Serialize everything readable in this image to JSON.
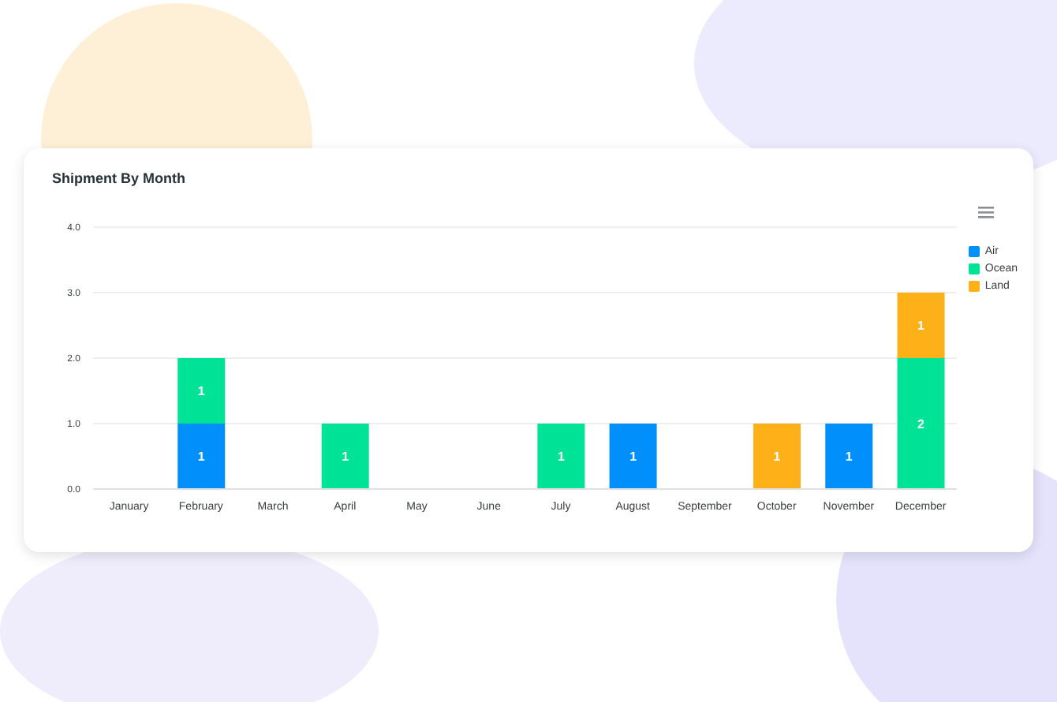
{
  "chart_data": {
    "type": "bar",
    "title": "Shipment By Month",
    "categories": [
      "January",
      "February",
      "March",
      "April",
      "May",
      "June",
      "July",
      "August",
      "September",
      "October",
      "November",
      "December"
    ],
    "series": [
      {
        "name": "Air",
        "color": "#008ffb",
        "values": [
          null,
          1,
          null,
          null,
          null,
          null,
          null,
          1,
          null,
          null,
          1,
          null
        ]
      },
      {
        "name": "Ocean",
        "color": "#00e396",
        "values": [
          null,
          1,
          null,
          1,
          null,
          null,
          1,
          null,
          null,
          null,
          null,
          2
        ]
      },
      {
        "name": "Land",
        "color": "#feb019",
        "values": [
          null,
          null,
          null,
          null,
          null,
          null,
          null,
          null,
          null,
          1,
          null,
          1
        ]
      }
    ],
    "stacked": true,
    "ylim": [
      0,
      4
    ],
    "yticks": [
      {
        "value": 0,
        "label": "0.0"
      },
      {
        "value": 1,
        "label": "1.0"
      },
      {
        "value": 2,
        "label": "2.0"
      },
      {
        "value": 3,
        "label": "3.0"
      },
      {
        "value": 4,
        "label": "4.0"
      }
    ],
    "grid": "y",
    "legend": "top right",
    "data_labels": true
  }
}
